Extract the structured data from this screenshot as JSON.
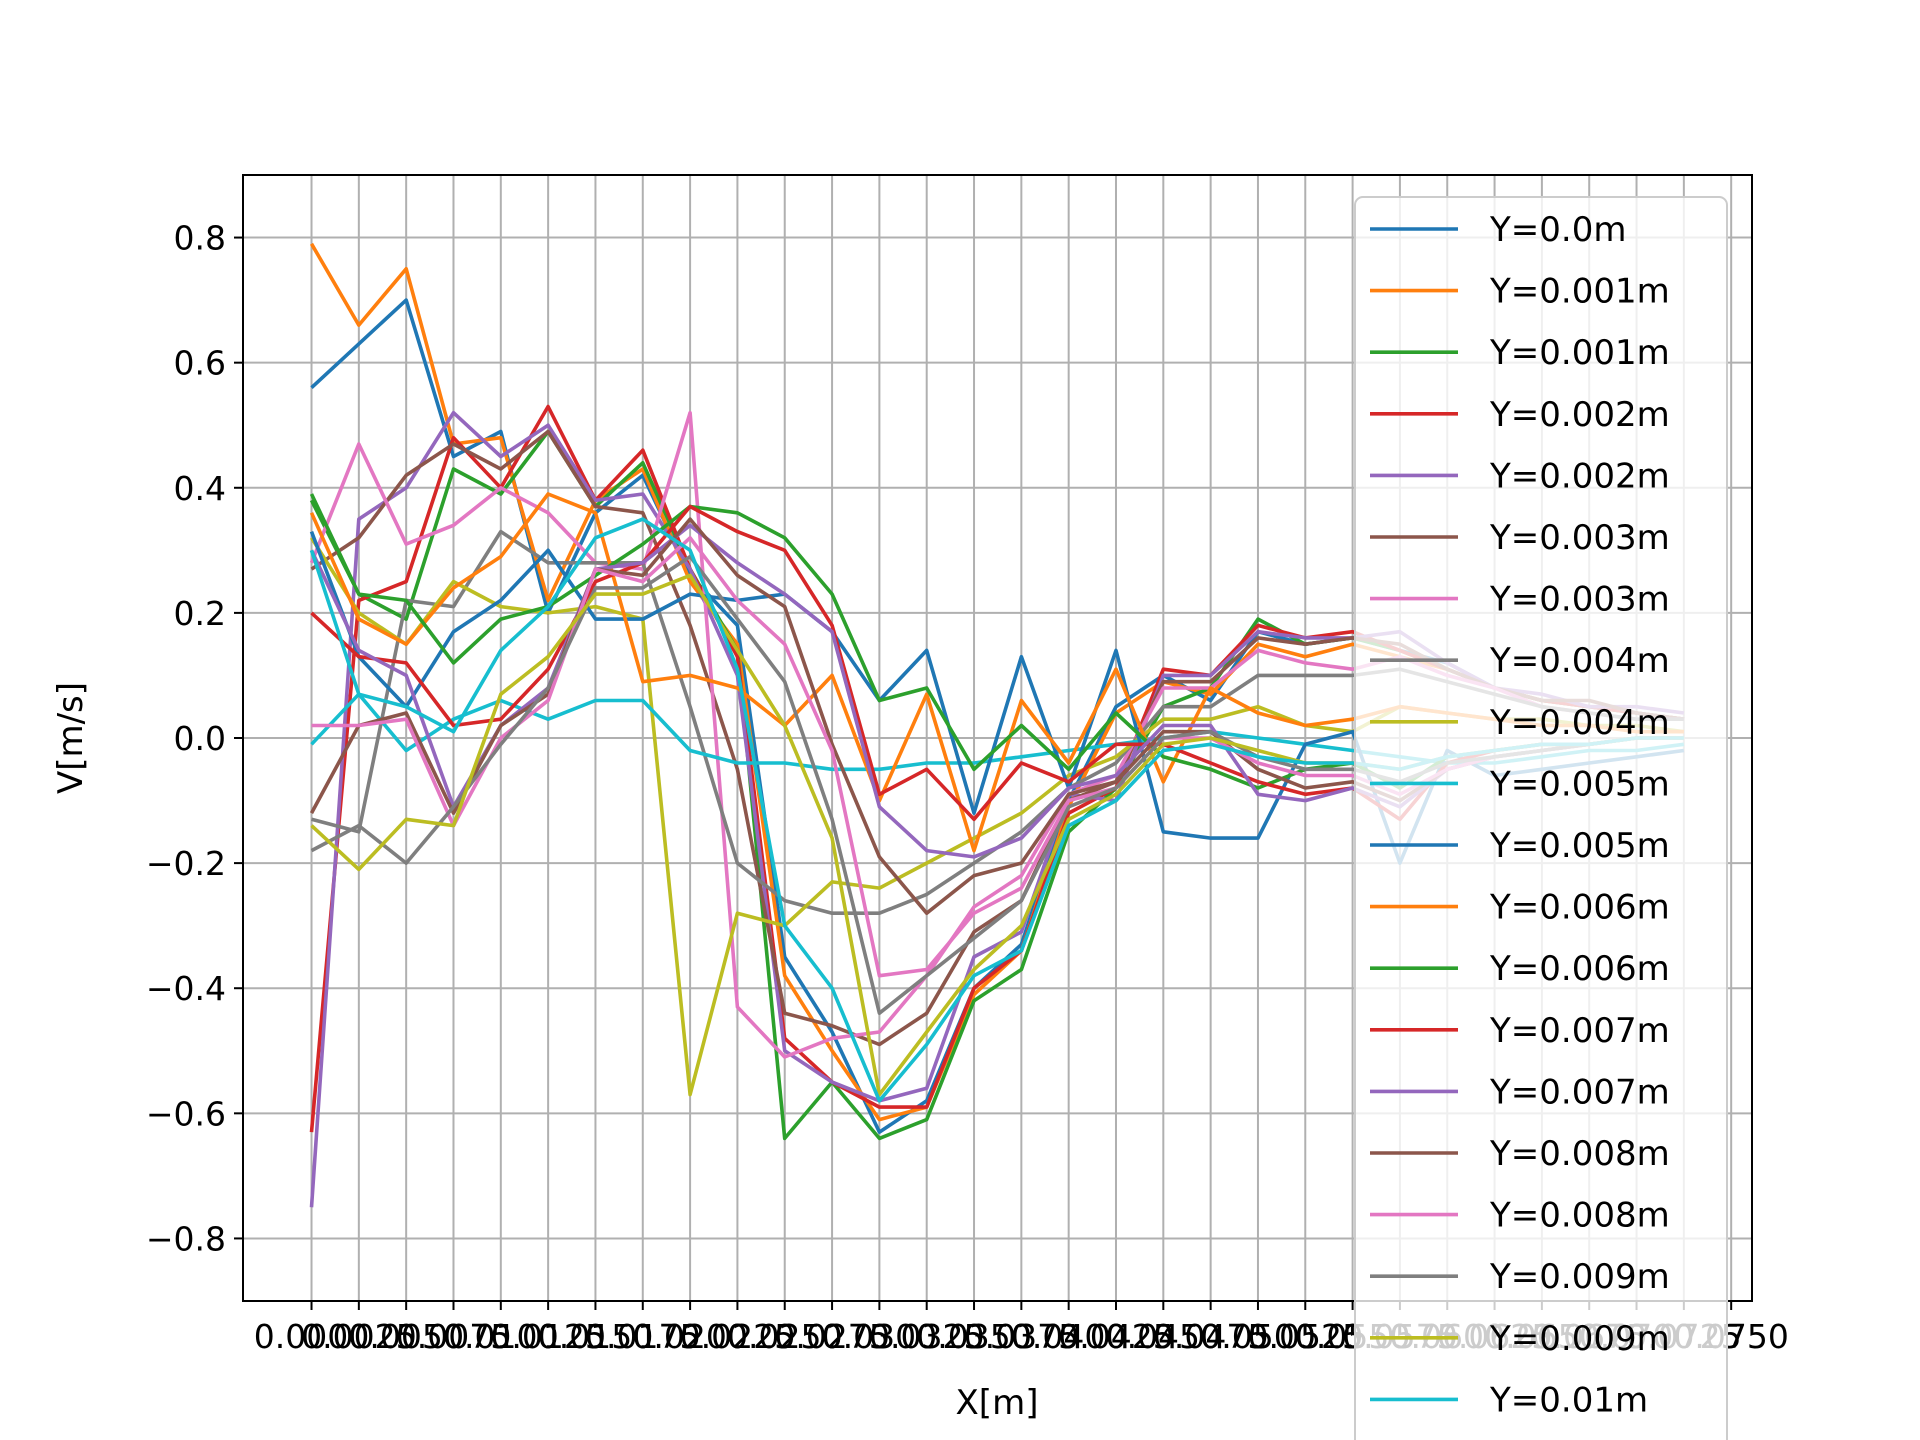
{
  "chart_data": {
    "type": "line",
    "title": "",
    "xlabel": "X[m]",
    "ylabel": "V[m/s]",
    "x": [
      0.0,
      0.0025,
      0.005,
      0.0075,
      0.01,
      0.0125,
      0.015,
      0.0175,
      0.02,
      0.0225,
      0.025,
      0.0275,
      0.03,
      0.0325,
      0.035,
      0.0375,
      0.04,
      0.0425,
      0.045,
      0.0475,
      0.05,
      0.0525,
      0.055,
      0.0575,
      0.06,
      0.0625,
      0.065,
      0.0675,
      0.07,
      0.0725
    ],
    "x_tick_labels": [
      "0.0000",
      "0.0025",
      "0.0050",
      "0.0075",
      "0.0100",
      "0.0125",
      "0.0150",
      "0.0175",
      "0.0200",
      "0.0225",
      "0.0250",
      "0.0275",
      "0.0300",
      "0.0325",
      "0.0350",
      "0.0375",
      "0.0400",
      "0.0425",
      "0.0450",
      "0.0475",
      "0.0500",
      "0.0525",
      "0.0550",
      "0.0575",
      "0.0600",
      "0.0625",
      "0.0650",
      "0.0675",
      "0.0700",
      "0.0725",
      "0.0750",
      "0.0775",
      "0.0800",
      "0.0825",
      "0.0850",
      "0.0875",
      "0.0900",
      "0.0925",
      "0.0950",
      "0.0975",
      "0.1000"
    ],
    "xlim": [
      -0.00362,
      0.0761
    ],
    "y_ticks": [
      -0.8,
      -0.6,
      -0.4,
      -0.2,
      0.0,
      0.2,
      0.4,
      0.6,
      0.8
    ],
    "y_tick_labels": [
      "−0.8",
      "−0.6",
      "−0.4",
      "−0.2",
      "0.0",
      "0.2",
      "0.4",
      "0.6",
      "0.8"
    ],
    "ylim": [
      -0.9,
      0.9
    ],
    "grid": true,
    "legend_position": "right, overlapping plot",
    "series": [
      {
        "name": "Y=0.0m",
        "color": "#1f77b4",
        "values": [
          0.56,
          0.63,
          0.7,
          0.45,
          0.49,
          0.2,
          0.36,
          0.42,
          0.26,
          0.18,
          -0.35,
          -0.47,
          -0.63,
          -0.58,
          -0.4,
          -0.33,
          -0.1,
          0.05,
          0.1,
          0.06,
          0.17,
          0.15,
          0.16,
          0.14,
          0.12,
          0.08,
          0.06,
          0.05,
          0.04,
          0.03
        ]
      },
      {
        "name": "Y=0.001m",
        "color": "#ff7f0e",
        "values": [
          0.79,
          0.66,
          0.75,
          0.47,
          0.48,
          0.22,
          0.38,
          0.43,
          0.25,
          0.15,
          -0.38,
          -0.5,
          -0.61,
          -0.59,
          -0.41,
          -0.34,
          -0.11,
          0.04,
          0.09,
          0.07,
          0.15,
          0.13,
          0.15,
          0.13,
          0.11,
          0.08,
          0.06,
          0.05,
          0.04,
          0.03
        ]
      },
      {
        "name": "Y=0.001m",
        "color": "#2ca02c",
        "values": [
          0.38,
          0.23,
          0.19,
          0.43,
          0.39,
          0.49,
          0.37,
          0.44,
          0.27,
          0.14,
          -0.64,
          -0.55,
          -0.64,
          -0.61,
          -0.42,
          -0.37,
          -0.15,
          -0.08,
          0.05,
          0.08,
          0.19,
          0.15,
          0.16,
          0.14,
          0.11,
          0.08,
          0.06,
          0.05,
          0.04,
          0.03
        ]
      },
      {
        "name": "Y=0.002m",
        "color": "#d62728",
        "values": [
          -0.63,
          0.22,
          0.25,
          0.48,
          0.4,
          0.53,
          0.38,
          0.46,
          0.27,
          0.13,
          -0.48,
          -0.55,
          -0.59,
          -0.59,
          -0.4,
          -0.34,
          -0.12,
          -0.08,
          0.11,
          0.1,
          0.18,
          0.16,
          0.17,
          0.14,
          0.11,
          0.08,
          0.06,
          0.05,
          0.04,
          0.03
        ]
      },
      {
        "name": "Y=0.002m",
        "color": "#9467bd",
        "values": [
          -0.75,
          0.35,
          0.4,
          0.52,
          0.45,
          0.5,
          0.38,
          0.39,
          0.27,
          0.1,
          -0.5,
          -0.55,
          -0.58,
          -0.56,
          -0.35,
          -0.31,
          -0.09,
          -0.1,
          0.1,
          0.1,
          0.17,
          0.16,
          0.16,
          0.17,
          0.12,
          0.08,
          0.07,
          0.05,
          0.05,
          0.04
        ]
      },
      {
        "name": "Y=0.003m",
        "color": "#8c564b",
        "values": [
          0.27,
          0.32,
          0.42,
          0.47,
          0.43,
          0.49,
          0.37,
          0.36,
          0.18,
          -0.05,
          -0.44,
          -0.46,
          -0.49,
          -0.44,
          -0.31,
          -0.26,
          -0.1,
          -0.07,
          0.09,
          0.09,
          0.16,
          0.15,
          0.16,
          0.15,
          0.11,
          0.08,
          0.06,
          0.06,
          0.04,
          0.03
        ]
      },
      {
        "name": "Y=0.003m",
        "color": "#e377c2",
        "values": [
          0.28,
          0.47,
          0.31,
          0.34,
          0.4,
          0.36,
          0.28,
          0.27,
          0.52,
          -0.43,
          -0.51,
          -0.48,
          -0.47,
          -0.38,
          -0.27,
          -0.22,
          -0.09,
          -0.06,
          0.08,
          0.08,
          0.14,
          0.12,
          0.11,
          0.13,
          0.1,
          0.08,
          0.05,
          0.04,
          0.03,
          0.03
        ]
      },
      {
        "name": "Y=0.004m",
        "color": "#7f7f7f",
        "values": [
          -0.13,
          -0.15,
          0.22,
          0.21,
          0.33,
          0.28,
          0.28,
          0.28,
          0.05,
          -0.2,
          -0.26,
          -0.28,
          -0.28,
          -0.25,
          -0.2,
          -0.15,
          -0.08,
          -0.04,
          0.05,
          0.05,
          0.1,
          0.1,
          0.1,
          0.11,
          0.09,
          0.07,
          0.05,
          0.04,
          0.03,
          0.03
        ]
      },
      {
        "name": "Y=0.004m",
        "color": "#bcbd22",
        "values": [
          0.32,
          0.2,
          0.15,
          0.25,
          0.21,
          0.2,
          0.21,
          0.19,
          -0.57,
          -0.28,
          -0.3,
          -0.23,
          -0.24,
          -0.2,
          -0.16,
          -0.12,
          -0.06,
          -0.03,
          0.03,
          0.03,
          0.05,
          0.02,
          0.01,
          0.05,
          0.04,
          0.03,
          0.03,
          0.02,
          0.02,
          0.01
        ]
      },
      {
        "name": "Y=0.005m",
        "color": "#17becf",
        "values": [
          -0.01,
          0.07,
          -0.02,
          0.03,
          0.06,
          0.03,
          0.06,
          0.06,
          -0.02,
          -0.04,
          -0.04,
          -0.05,
          -0.05,
          -0.04,
          -0.04,
          -0.03,
          -0.02,
          -0.01,
          0.0,
          0.01,
          0.0,
          -0.01,
          -0.02,
          -0.03,
          -0.04,
          -0.04,
          -0.03,
          -0.02,
          -0.02,
          -0.01
        ]
      },
      {
        "name": "Y=0.005m",
        "color": "#1f77b4",
        "values": [
          0.33,
          0.13,
          0.05,
          0.17,
          0.22,
          0.3,
          0.19,
          0.19,
          0.23,
          0.22,
          0.23,
          0.17,
          0.06,
          0.14,
          -0.12,
          0.13,
          -0.08,
          0.14,
          -0.15,
          -0.16,
          -0.16,
          -0.01,
          0.01,
          -0.2,
          -0.02,
          -0.06,
          -0.05,
          -0.04,
          -0.03,
          -0.02
        ]
      },
      {
        "name": "Y=0.006m",
        "color": "#ff7f0e",
        "values": [
          0.36,
          0.19,
          0.15,
          0.24,
          0.29,
          0.39,
          0.36,
          0.09,
          0.1,
          0.08,
          0.02,
          0.1,
          -0.1,
          0.07,
          -0.18,
          0.06,
          -0.04,
          0.11,
          -0.07,
          0.08,
          0.04,
          0.02,
          0.03,
          0.05,
          0.04,
          0.03,
          0.02,
          0.02,
          0.01,
          0.01
        ]
      },
      {
        "name": "Y=0.006m",
        "color": "#2ca02c",
        "values": [
          0.39,
          0.23,
          0.22,
          0.12,
          0.19,
          0.21,
          0.26,
          0.31,
          0.37,
          0.36,
          0.32,
          0.23,
          0.06,
          0.08,
          -0.05,
          0.02,
          -0.05,
          0.04,
          -0.03,
          -0.05,
          -0.08,
          -0.05,
          -0.04,
          -0.08,
          -0.03,
          -0.02,
          -0.01,
          -0.01,
          0.0,
          0.0
        ]
      },
      {
        "name": "Y=0.007m",
        "color": "#d62728",
        "values": [
          0.2,
          0.13,
          0.12,
          0.02,
          0.03,
          0.11,
          0.25,
          0.28,
          0.37,
          0.33,
          0.3,
          0.18,
          -0.09,
          -0.05,
          -0.13,
          -0.04,
          -0.07,
          -0.01,
          -0.01,
          -0.04,
          -0.07,
          -0.09,
          -0.08,
          -0.13,
          -0.04,
          -0.02,
          -0.01,
          -0.01,
          0.0,
          0.0
        ]
      },
      {
        "name": "Y=0.007m",
        "color": "#9467bd",
        "values": [
          0.3,
          0.14,
          0.1,
          -0.11,
          0.02,
          0.08,
          0.27,
          0.28,
          0.34,
          0.28,
          0.23,
          0.17,
          -0.11,
          -0.18,
          -0.19,
          -0.16,
          -0.08,
          -0.06,
          0.02,
          0.02,
          -0.09,
          -0.1,
          -0.08,
          -0.11,
          -0.05,
          -0.03,
          -0.02,
          -0.01,
          0.0,
          0.0
        ]
      },
      {
        "name": "Y=0.008m",
        "color": "#8c564b",
        "values": [
          -0.12,
          0.02,
          0.04,
          -0.12,
          0.02,
          0.07,
          0.27,
          0.26,
          0.35,
          0.26,
          0.21,
          -0.01,
          -0.19,
          -0.28,
          -0.22,
          -0.2,
          -0.09,
          -0.07,
          0.01,
          0.01,
          -0.05,
          -0.08,
          -0.07,
          -0.1,
          -0.05,
          -0.03,
          -0.02,
          -0.01,
          0.0,
          0.0
        ]
      },
      {
        "name": "Y=0.008m",
        "color": "#e377c2",
        "values": [
          0.02,
          0.02,
          0.03,
          -0.14,
          0.0,
          0.06,
          0.27,
          0.25,
          0.32,
          0.22,
          0.15,
          -0.02,
          -0.38,
          -0.37,
          -0.28,
          -0.24,
          -0.1,
          -0.08,
          0.0,
          0.0,
          -0.04,
          -0.06,
          -0.06,
          -0.09,
          -0.05,
          -0.03,
          -0.02,
          -0.01,
          0.0,
          0.0
        ]
      },
      {
        "name": "Y=0.009m",
        "color": "#7f7f7f",
        "values": [
          -0.18,
          -0.14,
          -0.2,
          -0.11,
          -0.01,
          0.08,
          0.24,
          0.24,
          0.29,
          0.19,
          0.09,
          -0.13,
          -0.44,
          -0.38,
          -0.32,
          -0.26,
          -0.11,
          -0.08,
          0.0,
          0.01,
          -0.03,
          -0.05,
          -0.05,
          -0.07,
          -0.04,
          -0.03,
          -0.02,
          -0.01,
          0.0,
          0.0
        ]
      },
      {
        "name": "Y=0.009m",
        "color": "#bcbd22",
        "values": [
          -0.14,
          -0.21,
          -0.13,
          -0.14,
          0.07,
          0.13,
          0.23,
          0.23,
          0.26,
          0.14,
          0.02,
          -0.16,
          -0.57,
          -0.47,
          -0.37,
          -0.3,
          -0.13,
          -0.09,
          -0.01,
          0.0,
          -0.02,
          -0.04,
          -0.04,
          -0.05,
          -0.03,
          -0.02,
          -0.01,
          -0.01,
          0.0,
          0.0
        ]
      },
      {
        "name": "Y=0.01m",
        "color": "#17becf",
        "values": [
          0.3,
          0.07,
          0.05,
          0.01,
          0.14,
          0.21,
          0.32,
          0.35,
          0.3,
          0.11,
          -0.3,
          -0.4,
          -0.58,
          -0.49,
          -0.38,
          -0.34,
          -0.14,
          -0.1,
          -0.02,
          -0.01,
          -0.03,
          -0.04,
          -0.04,
          -0.05,
          -0.03,
          -0.02,
          -0.01,
          -0.01,
          0.0,
          0.0
        ]
      }
    ]
  }
}
